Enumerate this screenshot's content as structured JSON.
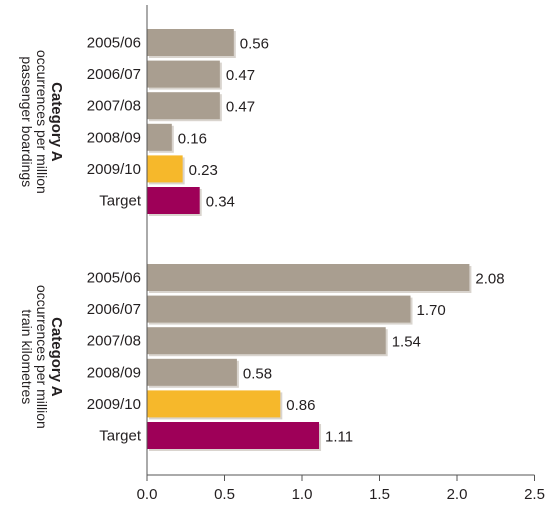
{
  "chart_data": [
    {
      "type": "bar",
      "orientation": "horizontal",
      "ylabel_title": "Category A",
      "ylabel_lines": [
        "occurrences per million",
        "passenger boardings"
      ],
      "categories": [
        "2005/06",
        "2006/07",
        "2007/08",
        "2008/09",
        "2009/10",
        "Target"
      ],
      "values": [
        0.56,
        0.47,
        0.47,
        0.16,
        0.23,
        0.34
      ],
      "value_labels": [
        "0.56",
        "0.47",
        "0.47",
        "0.16",
        "0.23",
        "0.34"
      ],
      "xlim": [
        0,
        2.5
      ]
    },
    {
      "type": "bar",
      "orientation": "horizontal",
      "ylabel_title": "Category A",
      "ylabel_lines": [
        "occurrences per million",
        "train kilometres"
      ],
      "categories": [
        "2005/06",
        "2006/07",
        "2007/08",
        "2008/09",
        "2009/10",
        "Target"
      ],
      "values": [
        2.08,
        1.7,
        1.54,
        0.58,
        0.86,
        1.11
      ],
      "value_labels": [
        "2.08",
        "1.70",
        "1.54",
        "0.58",
        "0.86",
        "1.11"
      ],
      "xlim": [
        0,
        2.5
      ]
    }
  ],
  "x_axis": {
    "ticks": [
      0.0,
      0.5,
      1.0,
      1.5,
      2.0,
      2.5
    ],
    "tick_labels": [
      "0.0",
      "0.5",
      "1.0",
      "1.5",
      "2.0",
      "2.5"
    ]
  },
  "colors": {
    "historical": "#a99e90",
    "current_year": "#f6b82b",
    "target": "#9e0058",
    "shadow": "#d9d4ce",
    "axis": "#555555",
    "text": "#231f20"
  }
}
